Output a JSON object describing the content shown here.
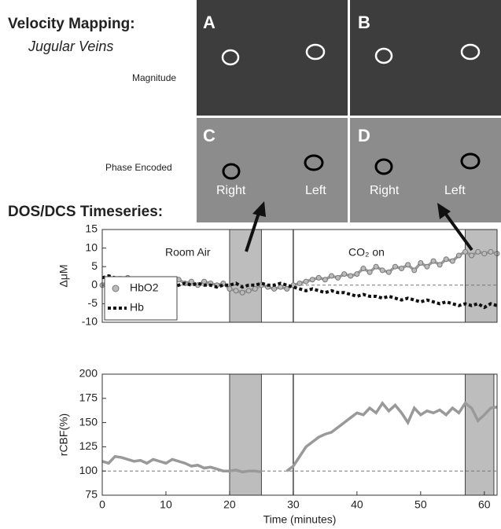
{
  "figure": {
    "title": "Velocity Mapping:",
    "subtitle": "Jugular Veins",
    "row_labels": [
      "Magnitude",
      "Phase Encoded"
    ],
    "panels": [
      "A",
      "B",
      "C",
      "D"
    ],
    "side_labels": [
      "Right",
      "Left"
    ],
    "section_title": "DOS/DCS Timeseries:"
  },
  "chart_data": [
    {
      "type": "line",
      "ylabel": "ΔμM",
      "x": [
        0,
        1,
        2,
        3,
        4,
        5,
        6,
        7,
        8,
        9,
        10,
        11,
        12,
        13,
        14,
        15,
        16,
        17,
        18,
        19,
        20,
        21,
        22,
        23,
        24,
        25,
        26,
        27,
        28,
        29,
        30,
        31,
        32,
        33,
        34,
        35,
        36,
        37,
        38,
        39,
        40,
        41,
        42,
        43,
        44,
        45,
        46,
        47,
        48,
        49,
        50,
        51,
        52,
        53,
        54,
        55,
        56,
        57,
        58,
        59,
        60,
        61,
        62
      ],
      "series": [
        {
          "name": "HbO2",
          "color": "#999999",
          "marker": "circle",
          "values": [
            0,
            1,
            1.5,
            1,
            2,
            1,
            0.5,
            1,
            1.5,
            0.5,
            0,
            1,
            1.5,
            0.5,
            1,
            0,
            1,
            0.5,
            0,
            0.5,
            -1,
            -1.5,
            -2,
            -1.5,
            -1,
            0,
            -0.5,
            -1,
            -0.5,
            -1,
            0,
            0.5,
            1,
            1.5,
            2,
            1.5,
            2.5,
            2,
            3,
            2.5,
            3,
            4.5,
            3.5,
            5,
            4,
            3.5,
            5,
            4.5,
            5.5,
            4,
            6,
            5,
            6.5,
            5.5,
            7,
            6.5,
            8,
            9,
            8,
            9,
            8.5,
            9,
            8.5
          ]
        },
        {
          "name": "Hb",
          "color": "#111111",
          "dashed": true,
          "values": [
            2,
            2.5,
            2,
            2,
            1.5,
            1,
            1,
            0.5,
            0.5,
            0,
            0,
            -0.5,
            0,
            0.5,
            0,
            0.5,
            0,
            0,
            -0.5,
            0,
            0,
            0.5,
            -0.5,
            0,
            0,
            0.5,
            0,
            0,
            0.5,
            0,
            -0.5,
            -1,
            -1.5,
            -1,
            -1.5,
            -2,
            -1.5,
            -2,
            -2,
            -2.5,
            -3,
            -2.5,
            -3,
            -3,
            -3.5,
            -3,
            -3.5,
            -4,
            -3.5,
            -4,
            -4.5,
            -4,
            -4.5,
            -5,
            -4.5,
            -5,
            -5.5,
            -5,
            -5.5,
            -5,
            -6,
            -5,
            -5.5
          ]
        }
      ],
      "xlim": [
        0,
        62
      ],
      "ylim": [
        -10,
        15
      ],
      "yticks": [
        -10,
        -5,
        0,
        5,
        10,
        15
      ],
      "reference_line": 0,
      "shaded_regions": [
        [
          20,
          25
        ],
        [
          57,
          62
        ]
      ],
      "vlines": [
        30
      ],
      "annotations": [
        "Room Air",
        "CO₂ on"
      ],
      "legend": "lower left"
    },
    {
      "type": "line",
      "ylabel": "rCBF(%)",
      "xlabel": "Time (minutes)",
      "x": [
        0,
        1,
        2,
        3,
        4,
        5,
        6,
        7,
        8,
        9,
        10,
        11,
        12,
        13,
        14,
        15,
        16,
        17,
        18,
        19,
        20,
        21,
        22,
        23,
        24,
        25,
        26,
        27,
        28,
        29,
        30,
        31,
        32,
        33,
        34,
        35,
        36,
        37,
        38,
        39,
        40,
        41,
        42,
        43,
        44,
        45,
        46,
        47,
        48,
        49,
        50,
        51,
        52,
        53,
        54,
        55,
        56,
        57,
        58,
        59,
        60,
        61,
        62
      ],
      "series": [
        {
          "color": "#999999",
          "values": [
            110,
            108,
            115,
            114,
            112,
            110,
            111,
            108,
            112,
            110,
            108,
            112,
            110,
            108,
            105,
            106,
            103,
            104,
            102,
            100,
            100,
            101,
            99,
            100,
            100,
            99,
            null,
            null,
            null,
            100,
            105,
            115,
            125,
            130,
            135,
            138,
            140,
            145,
            150,
            155,
            160,
            158,
            165,
            160,
            170,
            162,
            168,
            160,
            150,
            165,
            158,
            162,
            160,
            163,
            158,
            165,
            160,
            170,
            165,
            152,
            158,
            165,
            166
          ]
        }
      ],
      "xlim": [
        0,
        62
      ],
      "ylim": [
        75,
        200
      ],
      "xticks": [
        0,
        10,
        20,
        30,
        40,
        50,
        60
      ],
      "yticks": [
        75,
        100,
        125,
        150,
        175,
        200
      ],
      "reference_line": 100,
      "shaded_regions": [
        [
          20,
          25
        ],
        [
          57,
          61.5
        ]
      ],
      "vlines": [
        30
      ]
    }
  ]
}
